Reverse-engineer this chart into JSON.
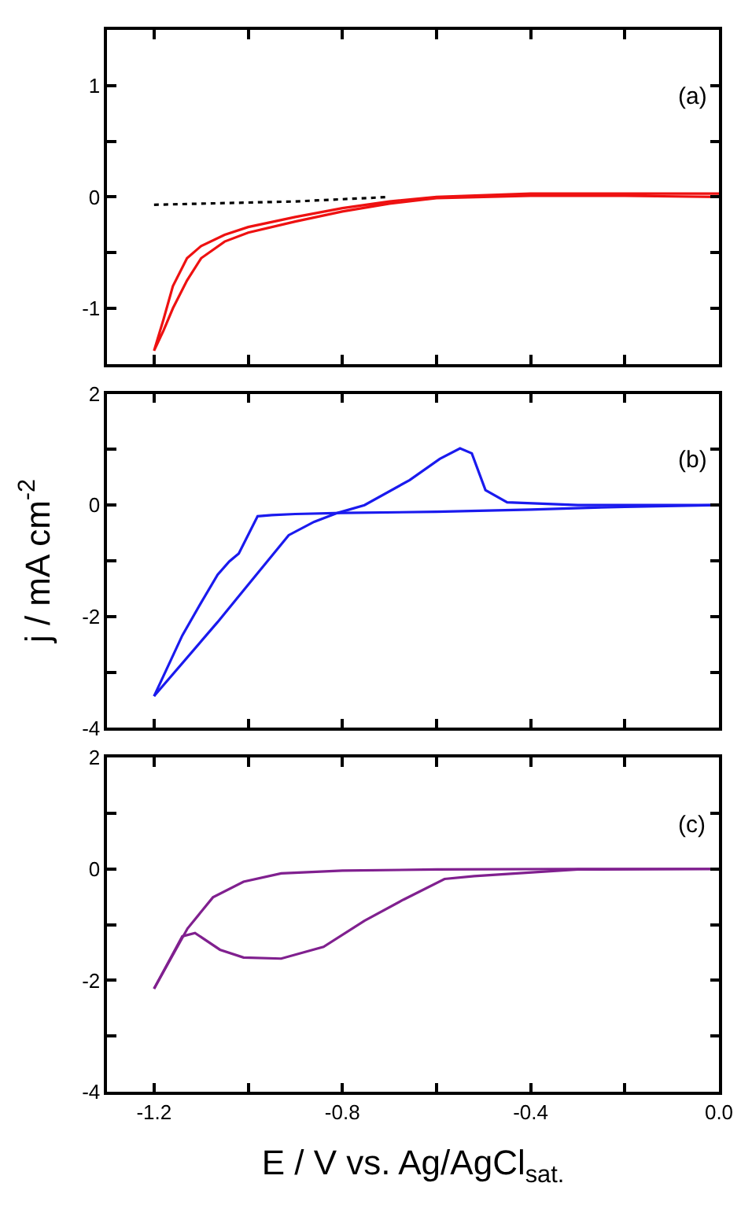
{
  "chart_data": [
    {
      "type": "line",
      "annotations": [
        "(a)"
      ],
      "tick_labels": "y",
      "xlim": [
        -1.3,
        0.0
      ],
      "xticks": [
        -1.2,
        -1.0,
        -0.8,
        -0.6,
        -0.4,
        -0.2,
        0
      ],
      "ylim": [
        -1.5,
        1.5
      ],
      "yticks": [
        -1,
        {
          "value": -0.5,
          "label": null
        },
        0,
        {
          "value": 0.5,
          "label": null
        },
        1
      ],
      "series": [
        {
          "color": "#000000",
          "line_style": "dotted",
          "x": [
            -1.2,
            -1.1,
            -1.0,
            -0.9,
            -0.8,
            -0.7
          ],
          "values": [
            -0.07,
            -0.06,
            -0.05,
            -0.04,
            -0.02,
            0.0
          ]
        },
        {
          "color": "#ee1111",
          "line_style": "solid",
          "x": [
            0,
            -0.2,
            -0.4,
            -0.6,
            -0.7,
            -0.8,
            -0.9,
            -1.0,
            -1.05,
            -1.1,
            -1.13,
            -1.16,
            -1.18,
            -1.2,
            -1.18,
            -1.16,
            -1.13,
            -1.1,
            -1.05,
            -1.0,
            -0.9,
            -0.8,
            -0.7,
            -0.6,
            -0.4,
            -0.2,
            0
          ],
          "values": [
            0.0,
            0.01,
            0.01,
            -0.01,
            -0.06,
            -0.13,
            -0.22,
            -0.32,
            -0.4,
            -0.55,
            -0.75,
            -1.0,
            -1.2,
            -1.38,
            -1.1,
            -0.8,
            -0.55,
            -0.44,
            -0.34,
            -0.27,
            -0.18,
            -0.1,
            -0.04,
            0.0,
            0.03,
            0.03,
            0.03
          ]
        }
      ]
    },
    {
      "type": "line",
      "annotations": [
        "(b)"
      ],
      "ylabel": "j / mA cm$^{-2}$",
      "tick_labels": "y",
      "xlim": [
        -1.3,
        0.0
      ],
      "xticks": [
        -1.2,
        -1.0,
        -0.8,
        -0.6,
        -0.4,
        -0.2,
        0
      ],
      "ylim": [
        -4,
        2
      ],
      "yticks": [
        -4,
        {
          "value": -3,
          "label": null
        },
        -2,
        {
          "value": -1,
          "label": null
        },
        0,
        {
          "value": 1,
          "label": null
        },
        2
      ],
      "series": [
        {
          "color": "#1a1aee",
          "line_style": "solid",
          "x": [
            0,
            -0.2,
            -0.4,
            -0.6,
            -0.8,
            -0.9,
            -0.95,
            -0.98,
            -1.02,
            -1.04,
            -1.065,
            -1.1,
            -1.14,
            -1.2
          ],
          "values": [
            0.0,
            -0.03,
            -0.08,
            -0.12,
            -0.14,
            -0.16,
            -0.18,
            -0.2,
            -0.87,
            -1.01,
            -1.25,
            -1.75,
            -2.34,
            -3.43
          ]
        },
        {
          "color": "#1a1aee",
          "line_style": "solid",
          "x": [
            -1.2,
            -1.065,
            -0.914,
            -0.86,
            -0.81,
            -0.753,
            -0.657,
            -0.593,
            -0.55,
            -0.525,
            -0.496,
            -0.45,
            -0.3,
            0
          ],
          "values": [
            -3.43,
            -2.1,
            -0.54,
            -0.3,
            -0.14,
            0.0,
            0.45,
            0.83,
            1.02,
            0.93,
            0.27,
            0.05,
            0.0,
            0.0
          ]
        }
      ]
    },
    {
      "type": "line",
      "annotations": [
        "(c)"
      ],
      "xlabel": "E / V vs. Ag/AgCl$_{sat.}$",
      "xlim": [
        -1.3,
        0.0
      ],
      "xticks": [
        -1.2,
        {
          "value": -1.0,
          "label": null
        },
        -0.8,
        {
          "value": -0.6,
          "label": null
        },
        -0.4,
        {
          "value": -0.2,
          "label": null
        },
        {
          "value": 0,
          "label": "0.0"
        }
      ],
      "ylim": [
        -4,
        2
      ],
      "yticks": [
        -4,
        {
          "value": -3,
          "label": null
        },
        -2,
        {
          "value": -1,
          "label": null
        },
        0,
        {
          "value": 1,
          "label": null
        },
        2
      ],
      "series": [
        {
          "color": "#80208f",
          "line_style": "solid",
          "x": [
            0,
            -0.3,
            -0.52,
            -0.583,
            -0.67,
            -0.753,
            -0.84,
            -0.93,
            -1.01,
            -1.06,
            -1.113,
            -1.14,
            -1.17,
            -1.2
          ],
          "values": [
            0.0,
            -0.01,
            -0.13,
            -0.18,
            -0.55,
            -0.93,
            -1.4,
            -1.61,
            -1.59,
            -1.45,
            -1.15,
            -1.21,
            -1.68,
            -2.15
          ]
        },
        {
          "color": "#80208f",
          "line_style": "solid",
          "x": [
            -1.2,
            -1.129,
            -1.075,
            -1.01,
            -0.93,
            -0.8,
            -0.6,
            -0.3,
            0
          ],
          "values": [
            -2.15,
            -1.07,
            -0.51,
            -0.23,
            -0.08,
            -0.03,
            -0.01,
            0.0,
            0.0
          ]
        }
      ]
    }
  ]
}
